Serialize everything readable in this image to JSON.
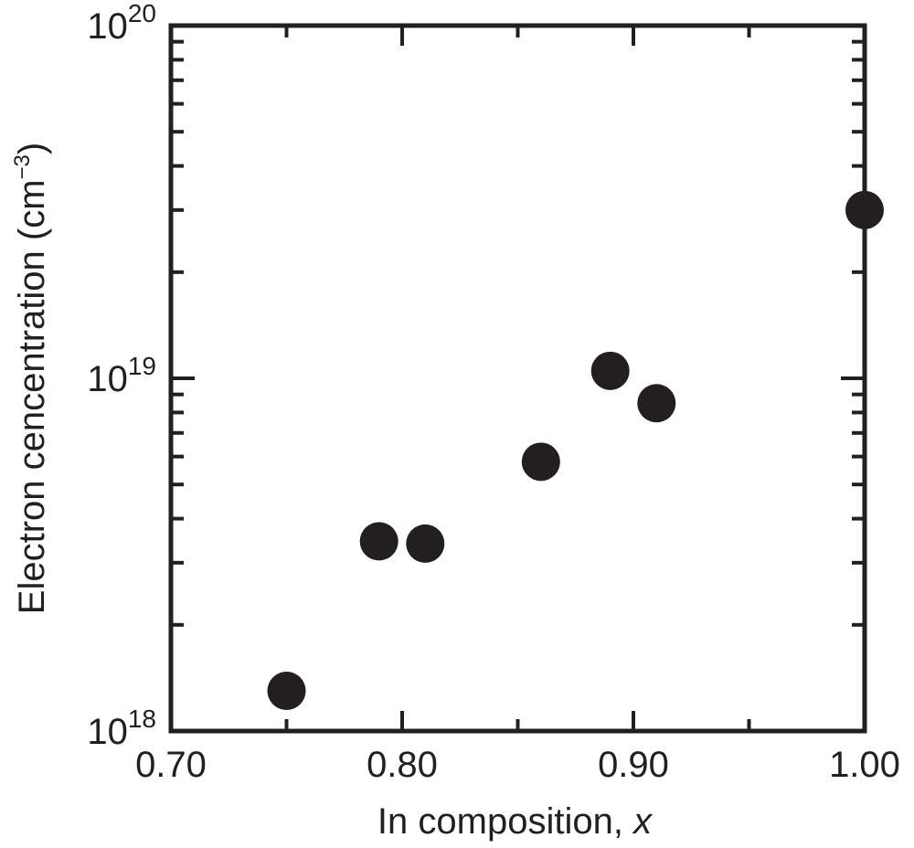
{
  "chart_data": {
    "type": "scatter",
    "title": "",
    "xlabel": "In composition, ",
    "xlabel_italic": "x",
    "ylabel": "Electron cencentration (cm",
    "ylabel_sup": "−3",
    "ylabel_close": ")",
    "xlim": [
      0.7,
      1.0
    ],
    "ylim": [
      1e+18,
      1e+20
    ],
    "yscale": "log",
    "grid": false,
    "legend": "none",
    "x_ticks": [
      {
        "value": 0.7,
        "label": "0.70"
      },
      {
        "value": 0.8,
        "label": "0.80"
      },
      {
        "value": 0.9,
        "label": "0.90"
      },
      {
        "value": 1.0,
        "label": "1.00"
      }
    ],
    "x_minor_ticks": [
      0.75,
      0.85,
      0.95
    ],
    "y_ticks": [
      {
        "value": 1e+18,
        "base": "10",
        "exp": "18"
      },
      {
        "value": 1e+19,
        "base": "10",
        "exp": "19"
      },
      {
        "value": 1e+20,
        "base": "10",
        "exp": "20"
      }
    ],
    "marker_color": "#231f20",
    "series": [
      {
        "points": [
          {
            "x": 0.75,
            "y": 1.3e+18
          },
          {
            "x": 0.79,
            "y": 3.45e+18
          },
          {
            "x": 0.81,
            "y": 3.4e+18
          },
          {
            "x": 0.86,
            "y": 5.8e+18
          },
          {
            "x": 0.89,
            "y": 1.05e+19
          },
          {
            "x": 0.91,
            "y": 8.5e+18
          },
          {
            "x": 1.0,
            "y": 3e+19
          }
        ]
      }
    ]
  }
}
